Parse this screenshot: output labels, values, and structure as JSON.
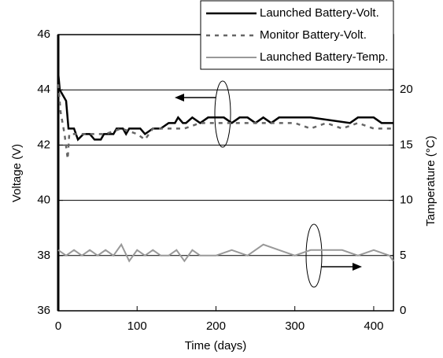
{
  "chart_data": {
    "type": "line",
    "x_label": "Time (days)",
    "y_label": "Voltage (V)",
    "y2_label": "Tamperature (°C)",
    "xlim": [
      0,
      425
    ],
    "xticks": [
      0,
      100,
      200,
      300,
      400
    ],
    "ylim": [
      36,
      46
    ],
    "yticks": [
      36,
      38,
      40,
      42,
      44,
      46
    ],
    "y2lim": [
      0,
      25
    ],
    "y2ticks": [
      0,
      5,
      10,
      15,
      20
    ],
    "grid": true,
    "legend": "top-right",
    "series": [
      {
        "name": "Launched Battery-Volt.",
        "color": "#000000",
        "dash": "solid",
        "axis": "y",
        "x": [
          0,
          2,
          10,
          13,
          20,
          25,
          32,
          40,
          46,
          54,
          58,
          70,
          74,
          82,
          86,
          90,
          104,
          110,
          120,
          130,
          140,
          148,
          152,
          158,
          162,
          170,
          180,
          190,
          198,
          210,
          220,
          230,
          240,
          250,
          260,
          270,
          280,
          290,
          300,
          320,
          370,
          380,
          400,
          410,
          425
        ],
        "values": [
          44.6,
          44,
          43.6,
          42.6,
          42.6,
          42.2,
          42.4,
          42.4,
          42.2,
          42.2,
          42.4,
          42.4,
          42.6,
          42.6,
          42.4,
          42.6,
          42.6,
          42.4,
          42.6,
          42.6,
          42.8,
          42.8,
          43,
          42.8,
          42.8,
          43,
          42.8,
          43,
          43,
          43,
          42.8,
          43,
          43,
          42.8,
          43,
          42.8,
          43,
          43,
          43,
          43,
          42.8,
          43,
          43,
          42.8,
          42.8
        ]
      },
      {
        "name": "Monitor Battery-Volt.",
        "color": "#666666",
        "dash": "dashed",
        "axis": "y",
        "x": [
          0,
          3,
          8,
          12,
          14,
          20,
          40,
          60,
          80,
          100,
          110,
          120,
          140,
          160,
          180,
          200,
          220,
          240,
          260,
          280,
          300,
          320,
          340,
          360,
          380,
          400,
          425
        ],
        "values": [
          44.2,
          43.2,
          42.4,
          41.5,
          42.4,
          42.4,
          42.4,
          42.4,
          42.6,
          42.4,
          42.2,
          42.6,
          42.6,
          42.6,
          42.8,
          42.8,
          42.8,
          42.8,
          42.8,
          42.8,
          42.8,
          42.6,
          42.8,
          42.6,
          42.8,
          42.6,
          42.6
        ]
      },
      {
        "name": "Launched Battery-Temp.",
        "color": "#999999",
        "dash": "solid",
        "axis": "y2",
        "x": [
          0,
          10,
          20,
          30,
          40,
          50,
          60,
          70,
          80,
          90,
          100,
          110,
          120,
          130,
          140,
          150,
          160,
          170,
          180,
          190,
          200,
          220,
          240,
          260,
          280,
          300,
          320,
          340,
          360,
          380,
          400,
          420,
          425
        ],
        "values": [
          5.5,
          5,
          5.5,
          5,
          5.5,
          5,
          5.5,
          5,
          6,
          4.5,
          5.5,
          5,
          5.5,
          5,
          5,
          5.5,
          4.5,
          5.5,
          5,
          5,
          5,
          5.5,
          5,
          6,
          5.5,
          5,
          5.5,
          5.5,
          5.5,
          5,
          5.5,
          5,
          4.5
        ]
      }
    ]
  }
}
